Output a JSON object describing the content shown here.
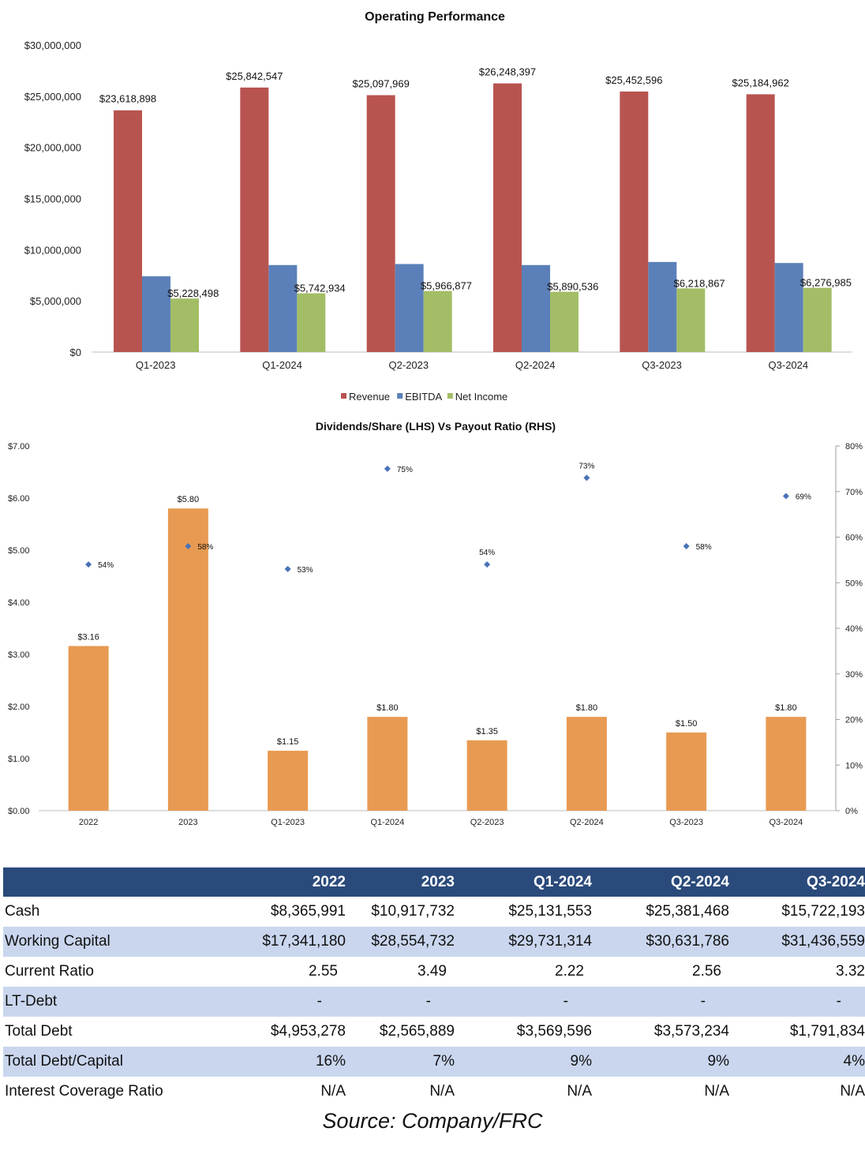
{
  "chart_data": [
    {
      "type": "bar",
      "title": "Operating Performance",
      "categories": [
        "Q1-2023",
        "Q1-2024",
        "Q2-2023",
        "Q2-2024",
        "Q3-2023",
        "Q3-2024"
      ],
      "series": [
        {
          "name": "Revenue",
          "color": "#b85450",
          "values": [
            23618898,
            25842547,
            25097969,
            26248397,
            25452596,
            25184962
          ],
          "labels": [
            "$23,618,898",
            "$25,842,547",
            "$25,097,969",
            "$26,248,397",
            "$25,452,596",
            "$25,184,962"
          ]
        },
        {
          "name": "EBITDA",
          "color": "#5b80b9",
          "values": [
            7400000,
            8500000,
            8600000,
            8500000,
            8800000,
            8700000
          ]
        },
        {
          "name": "Net Income",
          "color": "#a3bd66",
          "values": [
            5228498,
            5742934,
            5966877,
            5890536,
            6218867,
            6276985
          ],
          "labels": [
            "$5,228,498",
            "$5,742,934",
            "$5,966,877",
            "$5,890,536",
            "$6,218,867",
            "$6,276,985"
          ]
        }
      ],
      "ylim": [
        0,
        30000000
      ],
      "yticks": [
        "$0",
        "$5,000,000",
        "$10,000,000",
        "$15,000,000",
        "$20,000,000",
        "$25,000,000",
        "$30,000,000"
      ],
      "legend": "bottom",
      "grid": false
    },
    {
      "type": "bar",
      "title": "Dividends/Share (LHS) Vs Payout Ratio (RHS)",
      "categories": [
        "2022",
        "2023",
        "Q1-2023",
        "Q1-2024",
        "Q2-2023",
        "Q2-2024",
        "Q3-2023",
        "Q3-2024"
      ],
      "series": [
        {
          "name": "Dividends/Share",
          "axis": "left",
          "color": "#e89a52",
          "values": [
            3.16,
            5.8,
            1.15,
            1.8,
            1.35,
            1.8,
            1.5,
            1.8
          ],
          "labels": [
            "$3.16",
            "$5.80",
            "$1.15",
            "$1.80",
            "$1.35",
            "$1.80",
            "$1.50",
            "$1.80"
          ]
        },
        {
          "name": "Payout Ratio",
          "axis": "right",
          "type": "scatter",
          "color": "#4a72b8",
          "values": [
            54,
            58,
            53,
            75,
            54,
            73,
            58,
            69
          ],
          "labels": [
            "54%",
            "58%",
            "53%",
            "75%",
            "54%",
            "73%",
            "58%",
            "69%"
          ]
        }
      ],
      "ylim": [
        0,
        7
      ],
      "yticks": [
        "$0.00",
        "$1.00",
        "$2.00",
        "$3.00",
        "$4.00",
        "$5.00",
        "$6.00",
        "$7.00"
      ],
      "y2lim": [
        0,
        80
      ],
      "y2ticks": [
        "0%",
        "10%",
        "20%",
        "30%",
        "40%",
        "50%",
        "60%",
        "70%",
        "80%"
      ],
      "legend": "none",
      "grid": false
    }
  ],
  "table": {
    "headers": [
      "",
      "2022",
      "2023",
      "Q1-2024",
      "Q2-2024",
      "Q3-2024"
    ],
    "rows": [
      [
        "Cash",
        "$8,365,991",
        "$10,917,732",
        "$25,131,553",
        "$25,381,468",
        "$15,722,193"
      ],
      [
        "Working Capital",
        "$17,341,180",
        "$28,554,732",
        "$29,731,314",
        "$30,631,786",
        "$31,436,559"
      ],
      [
        "Current Ratio",
        "2.55",
        "3.49",
        "2.22",
        "2.56",
        "3.32"
      ],
      [
        "LT-Debt",
        "-",
        "-",
        "-",
        "-",
        "-"
      ],
      [
        "Total Debt",
        "$4,953,278",
        "$2,565,889",
        "$3,569,596",
        "$3,573,234",
        "$1,791,834"
      ],
      [
        "Total Debt/Capital",
        "16%",
        "7%",
        "9%",
        "9%",
        "4%"
      ],
      [
        "Interest Coverage Ratio",
        "N/A",
        "N/A",
        "N/A",
        "N/A",
        "N/A"
      ]
    ]
  },
  "source": "Source: Company/FRC"
}
